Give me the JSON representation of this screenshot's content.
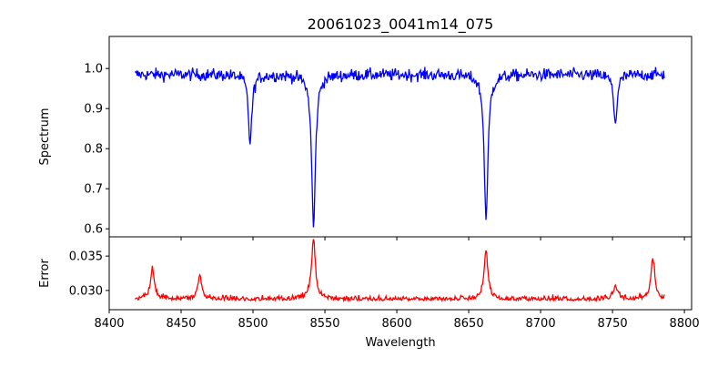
{
  "chart_data": [
    {
      "type": "line",
      "panel": "top",
      "title": "20061023_0041m14_075",
      "xlabel": "",
      "ylabel": "Spectrum",
      "xlim": [
        8400,
        8805
      ],
      "ylim": [
        0.58,
        1.08
      ],
      "x_ticks": [
        8400,
        8450,
        8500,
        8550,
        8600,
        8650,
        8700,
        8750,
        8800
      ],
      "y_ticks": [
        0.6,
        0.7,
        0.8,
        0.9,
        1.0
      ],
      "y_tick_labels": [
        "0.6",
        "0.7",
        "0.8",
        "0.9",
        "1.0"
      ],
      "grid": false,
      "series": [
        {
          "color": "#0000ff",
          "x_range": [
            8418,
            8786
          ],
          "continuum": 0.985,
          "noise": 0.03,
          "features": [
            {
              "center": 8498.0,
              "depth": 0.17,
              "width": 1.5
            },
            {
              "center": 8542.1,
              "depth": 0.38,
              "width": 1.6
            },
            {
              "center": 8662.1,
              "depth": 0.36,
              "width": 1.6
            },
            {
              "center": 8752.0,
              "depth": 0.12,
              "width": 1.5
            }
          ]
        }
      ]
    },
    {
      "type": "line",
      "panel": "bottom",
      "title": "",
      "xlabel": "Wavelength",
      "ylabel": "Error",
      "xlim": [
        8400,
        8805
      ],
      "ylim": [
        0.0272,
        0.0378
      ],
      "x_ticks": [
        8400,
        8450,
        8500,
        8550,
        8600,
        8650,
        8700,
        8750,
        8800
      ],
      "x_tick_labels": [
        "8400",
        "8450",
        "8500",
        "8550",
        "8600",
        "8650",
        "8700",
        "8750",
        "8800"
      ],
      "y_ticks": [
        0.03,
        0.035
      ],
      "y_tick_labels": [
        "0.030",
        "0.035"
      ],
      "grid": false,
      "series": [
        {
          "color": "#ff0000",
          "x_range": [
            8418,
            8786
          ],
          "baseline": 0.0285,
          "noise": 0.0007,
          "features": [
            {
              "center": 8430,
              "height": 0.0045
            },
            {
              "center": 8463,
              "height": 0.0035
            },
            {
              "center": 8542,
              "height": 0.0085
            },
            {
              "center": 8662,
              "height": 0.007
            },
            {
              "center": 8752,
              "height": 0.002
            },
            {
              "center": 8778,
              "height": 0.006
            }
          ]
        }
      ]
    }
  ]
}
